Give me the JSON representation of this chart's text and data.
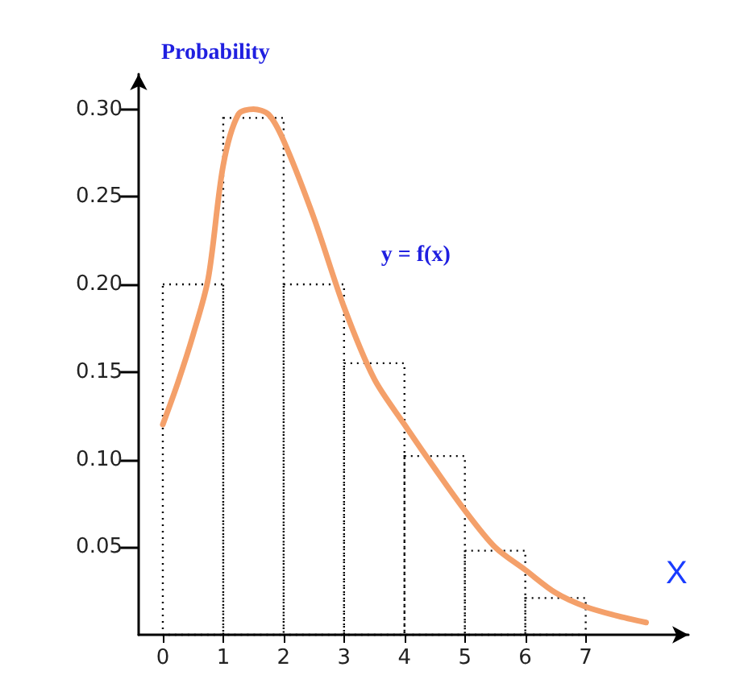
{
  "chart_data": {
    "type": "histogram",
    "ylabel": "Probability",
    "xlabel": "X",
    "xlim": [
      -0.4,
      8.7
    ],
    "ylim": [
      0,
      0.32
    ],
    "xticks": [
      0,
      1,
      2,
      3,
      4,
      5,
      6,
      7
    ],
    "yticks": [
      {
        "value": 0.05,
        "label": "0.05"
      },
      {
        "value": 0.1,
        "label": "0.10"
      },
      {
        "value": 0.15,
        "label": "0.15"
      },
      {
        "value": 0.2,
        "label": "0.20"
      },
      {
        "value": 0.25,
        "label": "0.25"
      },
      {
        "value": 0.3,
        "label": "0.30"
      }
    ],
    "grid": false,
    "legend": false,
    "series": [
      {
        "color": "#000000",
        "line_style": "dotted",
        "bins": [
          0,
          1,
          2,
          3,
          4,
          5,
          6,
          7
        ],
        "values": [
          0.2,
          0.295,
          0.2,
          0.155,
          0.102,
          0.048,
          0.021
        ]
      },
      {
        "type": "line",
        "name": "y = f(x)",
        "color": "#f4a06a",
        "line_style": "solid",
        "marker": "none",
        "x": [
          0,
          0.25,
          0.5,
          0.75,
          1,
          1.25,
          1.5,
          1.75,
          2,
          2.5,
          3,
          3.5,
          4,
          4.5,
          5,
          5.5,
          6,
          6.5,
          7,
          7.5,
          8
        ],
        "values": [
          0.12,
          0.144,
          0.171,
          0.203,
          0.268,
          0.297,
          0.3,
          0.297,
          0.282,
          0.238,
          0.187,
          0.146,
          0.12,
          0.095,
          0.071,
          0.05,
          0.037,
          0.024,
          0.016,
          0.011,
          0.007
        ]
      }
    ]
  }
}
